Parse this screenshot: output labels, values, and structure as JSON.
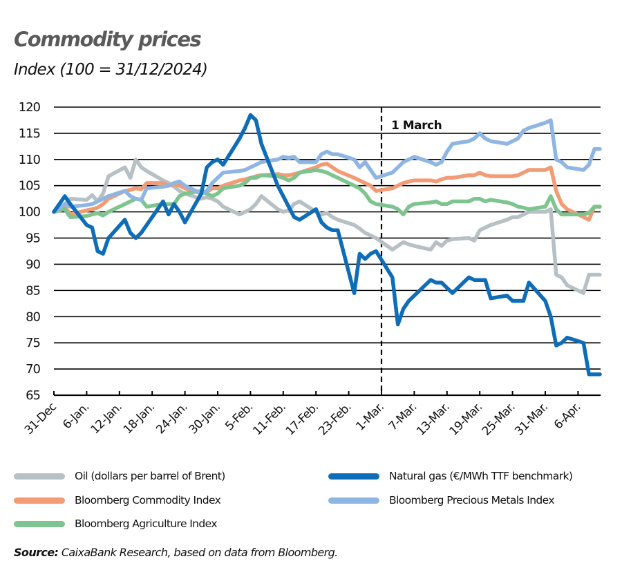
{
  "header": {
    "title": "Commodity prices",
    "subtitle": "Index (100 = 31/12/2024)"
  },
  "source": {
    "label": "Source:",
    "text": " CaixaBank Research, based on data from Bloomberg."
  },
  "chart_data": {
    "type": "line",
    "title": "Commodity prices",
    "subtitle": "Index (100 = 31/12/2024)",
    "xlabel": "",
    "ylabel": "",
    "ylim": [
      65,
      120
    ],
    "yticks": [
      65,
      70,
      75,
      80,
      85,
      90,
      95,
      100,
      105,
      110,
      115,
      120
    ],
    "grid": "horizontal",
    "legend_position": "bottom",
    "x_tick_labels": [
      "31-Dec",
      "6-Jan.",
      "12-Jan.",
      "18-Jan.",
      "24-Jan.",
      "30-Jan.",
      "5-Feb.",
      "11-Feb.",
      "17-Feb.",
      "23-Feb.",
      "1-Mar.",
      "7-Mar.",
      "13-Mar.",
      "19-Mar.",
      "25-Mar.",
      "31-Mar.",
      "6-Apr."
    ],
    "x_tick_days": [
      0,
      6,
      12,
      18,
      24,
      30,
      36,
      42,
      48,
      54,
      60,
      66,
      72,
      78,
      84,
      90,
      96
    ],
    "annotations": [
      {
        "type": "vline",
        "day": 60,
        "label": "1 March",
        "style": "dashed"
      }
    ],
    "x_days": [
      0,
      2,
      3,
      6,
      7,
      8,
      9,
      10,
      13,
      14,
      15,
      16,
      17,
      20,
      21,
      22,
      23,
      24,
      27,
      28,
      29,
      30,
      31,
      34,
      35,
      36,
      37,
      38,
      41,
      42,
      43,
      44,
      45,
      48,
      49,
      50,
      51,
      52,
      55,
      56,
      57,
      58,
      59,
      62,
      63,
      64,
      65,
      66,
      69,
      70,
      71,
      72,
      73,
      76,
      77,
      78,
      79,
      80,
      83,
      84,
      85,
      86,
      87,
      90,
      91,
      92,
      93,
      94,
      97,
      98,
      99,
      100
    ],
    "series": [
      {
        "name": "Oil (dollars per barrel of Brent)",
        "color": "#b7c0c4",
        "values": [
          100,
          101.5,
          102.5,
          102.3,
          103.2,
          102.0,
          103.5,
          106.8,
          108.5,
          106.5,
          110.0,
          108.5,
          107.8,
          106.0,
          105.5,
          104.8,
          104.0,
          103.5,
          102.5,
          102.8,
          102.5,
          102.0,
          101.0,
          99.5,
          100.0,
          100.5,
          101.5,
          103.0,
          100.5,
          100.0,
          100.3,
          101.5,
          102.0,
          100.0,
          99.5,
          99.8,
          99.0,
          98.5,
          97.5,
          96.8,
          96.0,
          95.5,
          95.0,
          92.8,
          93.5,
          94.2,
          93.8,
          93.5,
          92.8,
          94.2,
          93.5,
          94.5,
          94.8,
          95.0,
          94.5,
          96.5,
          97.0,
          97.5,
          98.5,
          99.0,
          99.0,
          99.5,
          100.0,
          100.0,
          100.5,
          88.0,
          87.5,
          86.0,
          84.5,
          88.0,
          88.0,
          88.0
        ]
      },
      {
        "name": "Natural gas (€/MWh TTF benchmark)",
        "color": "#0f6db8",
        "values": [
          100,
          103.0,
          101.5,
          97.5,
          97.0,
          92.5,
          92.0,
          95.0,
          98.5,
          96.0,
          95.0,
          96.0,
          97.5,
          102.0,
          99.5,
          101.5,
          100.0,
          98.0,
          103.5,
          108.5,
          109.5,
          110.0,
          109.0,
          114.0,
          116.0,
          118.5,
          117.5,
          113.0,
          105.0,
          103.0,
          101.0,
          99.0,
          98.5,
          100.5,
          98.0,
          97.0,
          96.5,
          96.5,
          84.5,
          92.0,
          91.0,
          92.0,
          92.5,
          87.5,
          78.5,
          81.5,
          83.0,
          84.0,
          87.0,
          86.5,
          86.5,
          85.5,
          84.5,
          87.5,
          87.0,
          87.0,
          87.0,
          83.5,
          84.0,
          83.0,
          83.0,
          83.0,
          86.5,
          83.0,
          80.0,
          74.5,
          75.0,
          76.0,
          75.0,
          69.0,
          69.0,
          69.0
        ]
      },
      {
        "name": "Bloomberg Commodity Index",
        "color": "#f29b74",
        "values": [
          100,
          101.0,
          99.5,
          100.3,
          100.5,
          100.8,
          101.5,
          102.5,
          104.0,
          104.2,
          104.5,
          104.3,
          105.5,
          105.5,
          105.0,
          105.2,
          105.0,
          104.5,
          103.5,
          103.8,
          104.5,
          104.5,
          105.0,
          106.0,
          106.2,
          106.5,
          106.8,
          107.0,
          107.2,
          107.0,
          107.0,
          107.2,
          107.5,
          108.5,
          109.0,
          109.2,
          108.5,
          107.8,
          106.5,
          106.0,
          105.5,
          105.0,
          104.0,
          104.5,
          105.0,
          105.5,
          105.8,
          106.0,
          106.0,
          105.8,
          106.2,
          106.5,
          106.5,
          107.0,
          107.0,
          107.5,
          107.0,
          106.8,
          106.8,
          106.8,
          107.0,
          107.5,
          108.0,
          108.0,
          108.5,
          104.0,
          101.5,
          100.5,
          99.0,
          98.5,
          101.0,
          101.0
        ]
      },
      {
        "name": "Bloomberg Precious Metals Index",
        "color": "#8fb5e3",
        "values": [
          100,
          101.5,
          101.0,
          101.3,
          101.5,
          102.0,
          102.5,
          103.0,
          104.0,
          103.0,
          102.5,
          102.3,
          104.5,
          104.8,
          105.0,
          105.5,
          105.8,
          105.0,
          103.5,
          104.0,
          105.5,
          106.5,
          107.5,
          107.8,
          108.0,
          108.5,
          109.0,
          109.5,
          110.0,
          110.5,
          110.3,
          110.5,
          109.5,
          109.5,
          111.0,
          111.5,
          111.0,
          111.0,
          110.0,
          108.5,
          109.5,
          108.0,
          106.5,
          107.5,
          108.5,
          109.5,
          110.0,
          110.5,
          109.5,
          109.0,
          109.5,
          111.5,
          113.0,
          113.5,
          114.0,
          115.0,
          114.0,
          113.5,
          113.0,
          113.5,
          114.0,
          115.5,
          116.0,
          117.0,
          117.5,
          110.0,
          109.5,
          108.5,
          108.0,
          109.0,
          112.0,
          112.0
        ]
      },
      {
        "name": "Bloomberg Agriculture Index",
        "color": "#7dc48e",
        "values": [
          100,
          100.5,
          99.0,
          99.2,
          99.5,
          99.8,
          99.3,
          100.0,
          101.5,
          102.0,
          102.5,
          102.3,
          101.0,
          101.5,
          101.5,
          101.5,
          103.0,
          103.5,
          104.0,
          103.5,
          103.0,
          103.5,
          104.5,
          105.0,
          105.5,
          106.5,
          106.5,
          107.0,
          106.8,
          106.5,
          106.0,
          106.5,
          107.5,
          108.0,
          107.8,
          107.5,
          107.0,
          106.5,
          105.0,
          104.5,
          103.5,
          102.0,
          101.5,
          101.0,
          100.5,
          99.5,
          101.0,
          101.5,
          101.8,
          102.0,
          101.5,
          101.5,
          102.0,
          102.0,
          102.5,
          102.5,
          102.0,
          102.3,
          101.8,
          101.5,
          101.0,
          100.8,
          100.5,
          101.0,
          103.0,
          100.5,
          99.5,
          99.5,
          99.5,
          99.8,
          101.0,
          101.0
        ]
      }
    ]
  },
  "legend": {
    "items": [
      {
        "label": "Oil (dollars per barrel of Brent)",
        "color": "#b7c0c4"
      },
      {
        "label": "Natural gas (€/MWh TTF benchmark)",
        "color": "#0f6db8"
      },
      {
        "label": "Bloomberg Commodity Index",
        "color": "#f29b74"
      },
      {
        "label": "Bloomberg Precious Metals Index",
        "color": "#8fb5e3"
      },
      {
        "label": "Bloomberg Agriculture Index",
        "color": "#7dc48e"
      }
    ]
  }
}
